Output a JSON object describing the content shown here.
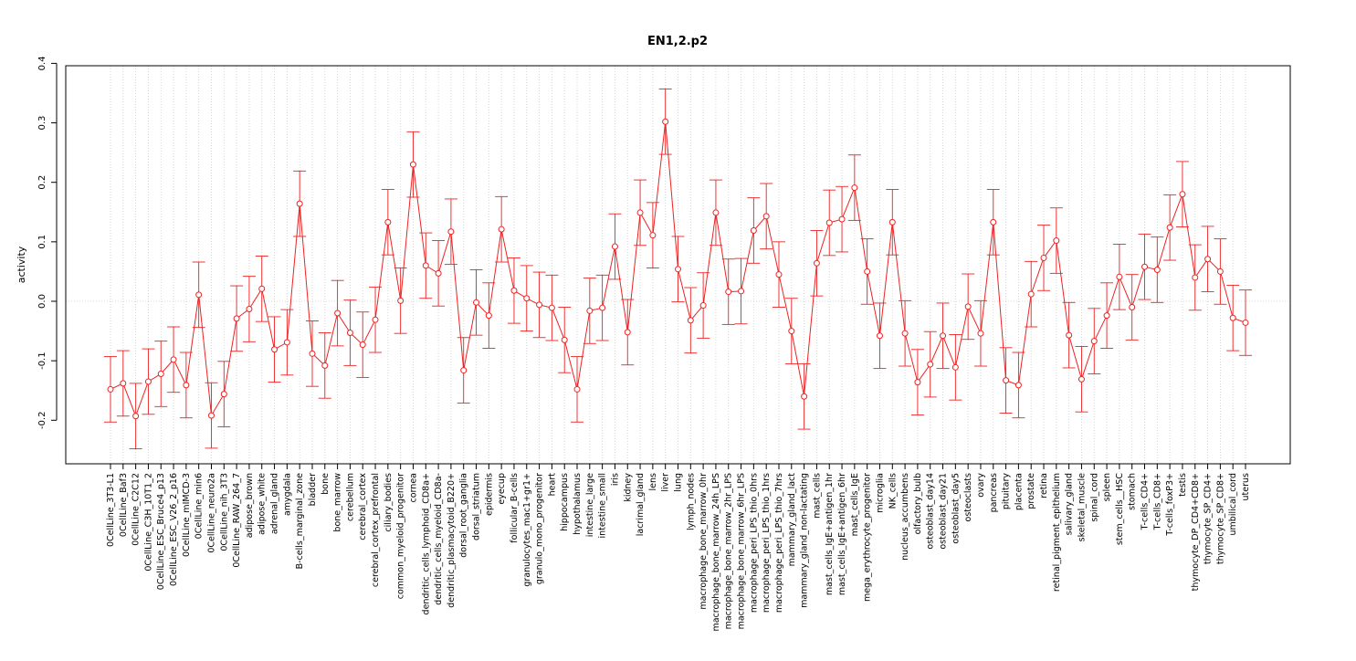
{
  "chart_data": {
    "type": "line",
    "title": "EN1,2.p2",
    "xlabel": "",
    "ylabel": "activity",
    "ylim": [
      -0.275,
      0.4
    ],
    "yticks": [
      -0.2,
      -0.1,
      0.0,
      0.1,
      0.2,
      0.3,
      0.4
    ],
    "ytick_labels": [
      "-0.2",
      "-0.1",
      "0.0",
      "0.1",
      "0.2",
      "0.3",
      "0.4"
    ],
    "grid": true,
    "zero_line": true,
    "series_color": "#ee2222",
    "grid_color": "#cccccc",
    "error_bar": 0.055,
    "categories": [
      "0CellLine_3T3-L1",
      "0CellLine_Baf3",
      "0CellLine_C2C12",
      "0CellLine_C3H_10T1_2",
      "0CellLine_ESC_Bruce4_p13",
      "0CellLine_ESC_V26_2_p16",
      "0CellLine_mIMCD-3",
      "0CellLine_min6",
      "0CellLine_neuro2a",
      "0CellLine_nih_3T3",
      "0CellLine_RAW_264_7",
      "adipose_brown",
      "adipose_white",
      "adrenal_gland",
      "amygdala",
      "B-cells_marginal_zone",
      "bladder",
      "bone",
      "bone_marrow",
      "cerebellum",
      "cerebral_cortex",
      "cerebral_cortex_prefrontal",
      "ciliary_bodies",
      "common_myeloid_progenitor",
      "cornea",
      "dendritic_cells_lymphoid_CD8a+",
      "dendritic_cells_myeloid_CD8a-",
      "dendritic_plasmacytoid_B220+",
      "dorsal_root_ganglia",
      "dorsal_striatum",
      "epidermis",
      "eyecup",
      "follicular_B-cells",
      "granulocytes_mac1+gr1+",
      "granulo_mono_progenitor",
      "heart",
      "hippocampus",
      "hypothalamus",
      "intestine_large",
      "intestine_small",
      "iris",
      "kidney",
      "lacrimal_gland",
      "lens",
      "liver",
      "lung",
      "lymph_nodes",
      "macrophage_bone_marrow_0hr",
      "macrophage_bone_marrow_24h_LPS",
      "macrophage_bone_marrow_2hr_LPS",
      "macrophage_bone_marrow_6hr_LPS",
      "macrophage_peri_LPS_thio_0hrs",
      "macrophage_peri_LPS_thio_1hrs",
      "macrophage_peri_LPS_thio_7hrs",
      "mammary_gland_lact",
      "mammary_gland_non-lactating",
      "mast_cells",
      "mast_cells_IgE+antigen_1hr",
      "mast_cells_IgE+antigen_6hr",
      "mast_cells_IgE",
      "mega_erythrocyte_progenitor",
      "microglia",
      "NK_cells",
      "nucleus_accumbens",
      "olfactory_bulb",
      "osteoblast_day14",
      "osteoblast_day21",
      "osteoblast_day5",
      "osteoclasts",
      "ovary",
      "pancreas",
      "pituitary",
      "placenta",
      "prostate",
      "retina",
      "retinal_pigment_epithelium",
      "salivary_gland",
      "skeletal_muscle",
      "spinal_cord",
      "spleen",
      "stem_cells__HSC",
      "stomach",
      "T-cells_CD4+",
      "T-cells_CD8+",
      "T-cells_foxP3+",
      "testis",
      "thymocyte_DP_CD4+CD8+",
      "thymocyte_SP_CD4+",
      "thymocyte_SP_CD8+",
      "umbilical_cord",
      "uterus"
    ],
    "values": [
      -0.148,
      -0.138,
      -0.193,
      -0.135,
      -0.122,
      -0.098,
      -0.141,
      0.011,
      -0.192,
      -0.156,
      -0.029,
      -0.013,
      0.021,
      -0.081,
      -0.069,
      0.164,
      -0.088,
      -0.108,
      -0.02,
      -0.053,
      -0.073,
      -0.031,
      0.133,
      0.001,
      0.23,
      0.06,
      0.047,
      0.117,
      -0.116,
      -0.002,
      -0.024,
      0.121,
      0.018,
      0.005,
      -0.006,
      -0.011,
      -0.065,
      -0.148,
      -0.016,
      -0.011,
      0.092,
      -0.052,
      0.149,
      0.111,
      0.302,
      0.054,
      -0.032,
      -0.007,
      0.149,
      0.016,
      0.017,
      0.119,
      0.143,
      0.045,
      -0.05,
      -0.16,
      0.064,
      0.132,
      0.138,
      0.191,
      0.05,
      -0.058,
      0.133,
      -0.054,
      -0.136,
      -0.106,
      -0.058,
      -0.111,
      -0.009,
      -0.054,
      0.133,
      -0.133,
      -0.141,
      0.012,
      0.073,
      0.102,
      -0.057,
      -0.131,
      -0.067,
      -0.024,
      0.041,
      -0.01,
      0.058,
      0.053,
      0.124,
      0.18,
      0.04,
      0.071,
      0.05,
      -0.028,
      -0.036
    ]
  }
}
